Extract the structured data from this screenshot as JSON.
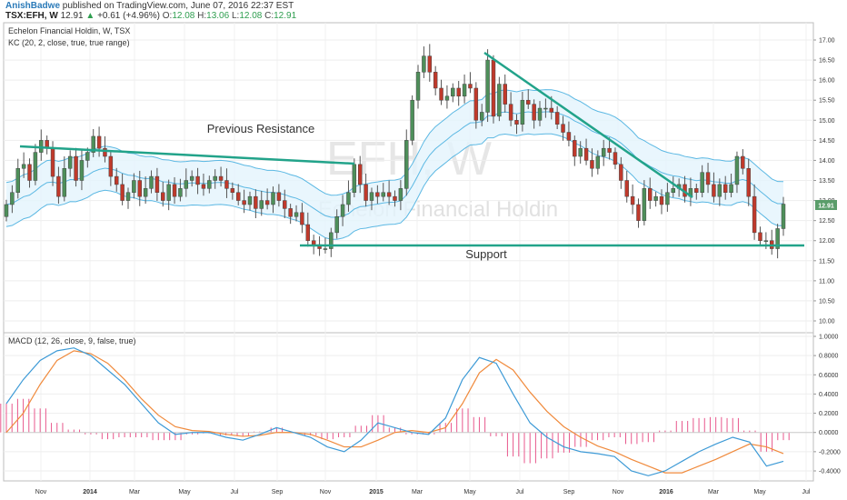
{
  "header": {
    "author": "AnishBadwe",
    "published": "published on TradingView.com, June 07, 2016 22:37 EST",
    "symbol": "TSX:EFH, W",
    "last": "12.91",
    "change_arrow": "▲",
    "change": "+0.61 (+4.96%)",
    "o_label": "O:",
    "o": "12.08",
    "h_label": "H:",
    "h": "13.06",
    "l_label": "L:",
    "l": "12.08",
    "c_label": "C:",
    "c": "12.91"
  },
  "price_pane": {
    "title": "Echelon Financial Holdin, W, TSX",
    "indicator": "KC (20, 2, close, true, true range)",
    "watermark_symbol": "EFH, W",
    "watermark_name": "Echelon Financial Holdin",
    "last_price_badge": "12.91"
  },
  "macd_pane": {
    "indicator": "MACD (12, 26, close, 9, false, true)"
  },
  "annotations": {
    "previous_resistance": "Previous Resistance",
    "support": "Support"
  },
  "colors": {
    "up_candle": "#4e8f5a",
    "down_candle": "#c0392b",
    "keltner_line": "#5bb8e3",
    "keltner_fill": "#e3f4fc",
    "trendline": "#22a38a",
    "macd_line": "#3d9ad6",
    "signal_line": "#f08a3c",
    "histogram": "#e8578c",
    "author": "#2a7ab8",
    "price_badge": "#5a9d6a"
  },
  "chart_data": [
    {
      "type": "candlestick",
      "title": "Echelon Financial Holdin, W, TSX",
      "x_tick_labels": [
        "Nov",
        "2014",
        "Mar",
        "May",
        "Jul",
        "Sep",
        "Nov",
        "2015",
        "Mar",
        "May",
        "Jul",
        "Sep",
        "Nov",
        "2016",
        "Mar",
        "May",
        "Jul"
      ],
      "y_tick_labels": [
        "17.00",
        "16.50",
        "16.00",
        "15.50",
        "15.00",
        "14.50",
        "14.00",
        "13.50",
        "13.00",
        "12.50",
        "12.00",
        "11.50",
        "11.00",
        "10.50",
        "10.00"
      ],
      "ylim": [
        9.85,
        17.15
      ],
      "candles_close": [
        12.9,
        13.2,
        13.8,
        13.9,
        13.5,
        14.2,
        14.5,
        14.3,
        13.6,
        13.1,
        13.8,
        14.1,
        13.5,
        14.0,
        14.2,
        14.6,
        14.3,
        14.1,
        13.6,
        13.4,
        13.0,
        13.2,
        13.5,
        13.1,
        13.3,
        13.6,
        13.2,
        13.0,
        13.4,
        13.1,
        13.3,
        13.5,
        13.6,
        13.4,
        13.3,
        13.5,
        13.6,
        13.5,
        13.3,
        13.2,
        13.0,
        12.9,
        13.1,
        12.8,
        13.0,
        12.9,
        13.2,
        13.0,
        12.8,
        12.6,
        12.7,
        12.4,
        12.0,
        11.9,
        11.8,
        11.8,
        12.2,
        12.6,
        12.9,
        13.2,
        13.9,
        13.4,
        13.0,
        13.2,
        13.1,
        13.2,
        13.1,
        13.0,
        13.3,
        14.5,
        15.5,
        16.2,
        16.6,
        16.2,
        15.8,
        15.5,
        15.6,
        15.8,
        15.6,
        15.9,
        15.8,
        15.0,
        15.2,
        16.5,
        15.1,
        15.9,
        15.4,
        15.0,
        14.9,
        15.5,
        15.4,
        15.0,
        15.3,
        15.3,
        15.2,
        14.9,
        14.7,
        14.5,
        14.1,
        14.3,
        14.0,
        13.8,
        14.1,
        14.3,
        14.2,
        13.9,
        13.5,
        13.1,
        12.9,
        12.5,
        13.3,
        13.0,
        13.1,
        12.9,
        13.2,
        13.3,
        13.4,
        13.1,
        13.3,
        13.2,
        13.7,
        13.4,
        13.1,
        13.4,
        13.2,
        13.4,
        14.1,
        13.8,
        13.1,
        12.2,
        12.0,
        12.0,
        11.8,
        12.3,
        12.91
      ],
      "keltner_channel": {
        "middle_start": 13.0,
        "middle_end": 13.3,
        "upper_start": 13.5,
        "upper_end": 14.1,
        "lower_start": 12.5,
        "lower_end": 12.6
      },
      "annotations": [
        "Previous Resistance",
        "Support"
      ],
      "resistance_line": [
        13.9,
        13.3
      ],
      "support_level": 11.9,
      "downtrend_line": [
        16.6,
        13.5
      ]
    },
    {
      "type": "line",
      "title": "MACD (12, 26, close, 9, false, true)",
      "y_tick_labels": [
        "1.0000",
        "0.8000",
        "0.6000",
        "0.4000",
        "0.2000",
        "0.0000",
        "-0.2000",
        "-0.4000"
      ],
      "ylim": [
        -0.47,
        1.0
      ],
      "series": [
        {
          "name": "MACD",
          "values": [
            0.3,
            0.55,
            0.75,
            0.85,
            0.88,
            0.8,
            0.65,
            0.5,
            0.3,
            0.1,
            -0.02,
            0.0,
            0.0,
            -0.05,
            -0.08,
            -0.02,
            0.05,
            0.0,
            -0.05,
            -0.15,
            -0.2,
            -0.08,
            0.1,
            0.05,
            0.0,
            -0.02,
            0.15,
            0.55,
            0.78,
            0.72,
            0.4,
            0.1,
            -0.05,
            -0.15,
            -0.2,
            -0.22,
            -0.25,
            -0.4,
            -0.45,
            -0.4,
            -0.3,
            -0.2,
            -0.12,
            -0.05,
            -0.1,
            -0.35,
            -0.3
          ]
        },
        {
          "name": "Signal",
          "values": [
            0.0,
            0.2,
            0.5,
            0.75,
            0.85,
            0.82,
            0.72,
            0.55,
            0.35,
            0.18,
            0.06,
            0.02,
            0.01,
            -0.02,
            -0.04,
            -0.03,
            0.0,
            0.0,
            -0.02,
            -0.08,
            -0.15,
            -0.15,
            -0.08,
            0.0,
            0.02,
            0.0,
            0.05,
            0.3,
            0.62,
            0.76,
            0.65,
            0.42,
            0.22,
            0.06,
            -0.05,
            -0.14,
            -0.2,
            -0.28,
            -0.35,
            -0.42,
            -0.42,
            -0.35,
            -0.28,
            -0.2,
            -0.12,
            -0.15,
            -0.22
          ]
        },
        {
          "name": "Histogram",
          "values": [
            0.3,
            0.35,
            0.25,
            0.1,
            0.03,
            -0.02,
            -0.07,
            -0.05,
            -0.05,
            -0.08,
            -0.08,
            -0.02,
            -0.01,
            -0.03,
            -0.04,
            0.01,
            0.05,
            0.0,
            -0.03,
            -0.07,
            -0.05,
            0.07,
            0.18,
            0.05,
            -0.02,
            -0.02,
            0.1,
            0.25,
            0.16,
            -0.04,
            -0.25,
            -0.32,
            -0.27,
            -0.21,
            -0.15,
            -0.08,
            -0.05,
            -0.12,
            -0.1,
            0.02,
            0.12,
            0.15,
            0.16,
            0.15,
            0.02,
            -0.2,
            -0.08
          ]
        }
      ]
    }
  ]
}
